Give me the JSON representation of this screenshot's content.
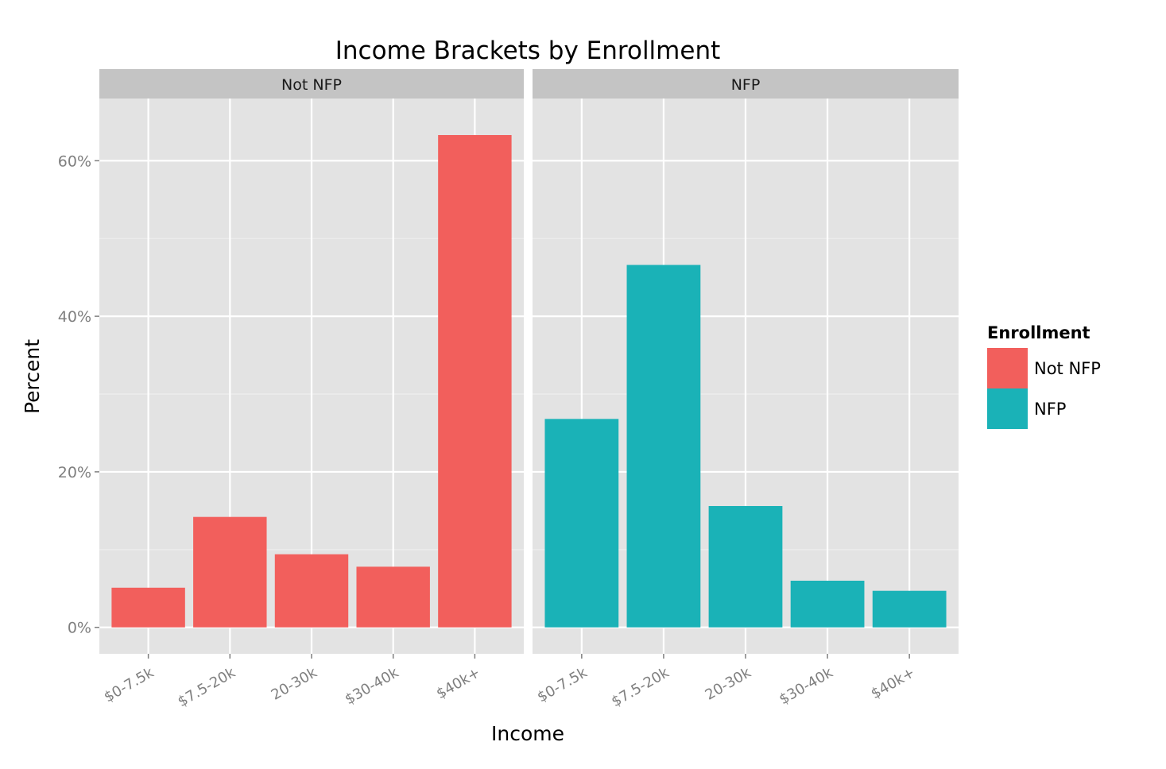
{
  "chart_data": {
    "type": "bar",
    "title": "Income Brackets by Enrollment",
    "xlabel": "Income",
    "ylabel": "Percent",
    "categories": [
      "$0-7.5k",
      "$7.5-20k",
      "20-30k",
      "$30-40k",
      "$40k+"
    ],
    "ylim": [
      -0.034,
      0.68
    ],
    "yticks": [
      0,
      0.2,
      0.4,
      0.6
    ],
    "ytick_labels": [
      "0%",
      "20%",
      "40%",
      "60%"
    ],
    "grid": true,
    "facets": [
      {
        "label": "Not NFP",
        "color": "#F25F5C",
        "values": [
          0.051,
          0.142,
          0.094,
          0.078,
          0.633
        ]
      },
      {
        "label": "NFP",
        "color": "#1AB2B7",
        "values": [
          0.268,
          0.466,
          0.156,
          0.06,
          0.047
        ]
      }
    ],
    "legend": {
      "title": "Enrollment",
      "placement": "right",
      "entries": [
        {
          "label": "Not NFP",
          "color": "#F25F5C"
        },
        {
          "label": "NFP",
          "color": "#1AB2B7"
        }
      ]
    }
  }
}
